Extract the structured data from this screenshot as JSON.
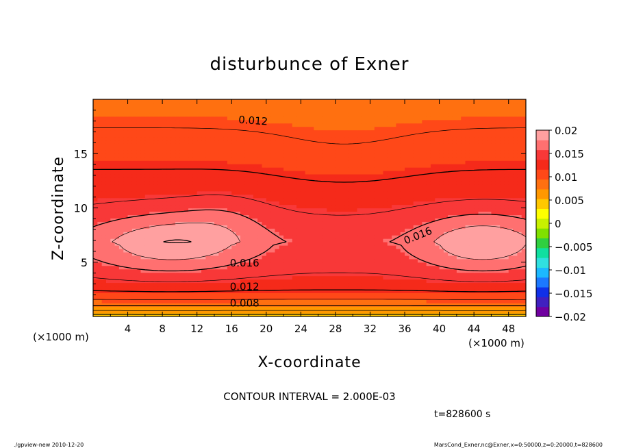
{
  "chart_data": {
    "type": "contour",
    "title": "disturbunce of Exner",
    "xlabel": "X-coordinate",
    "ylabel": "Z-coordinate",
    "x_unit_left": "(×1000 m)",
    "x_unit_right": "(×1000 m)",
    "xlim": [
      0,
      50
    ],
    "ylim": [
      0,
      20
    ],
    "x_ticks": [
      4,
      8,
      12,
      16,
      20,
      24,
      28,
      32,
      36,
      40,
      44,
      48
    ],
    "x_tick_labels": [
      "4",
      "8",
      "12",
      "16",
      "20",
      "24",
      "28",
      "32",
      "36",
      "40",
      "44",
      "48"
    ],
    "y_ticks": [
      5,
      10,
      15
    ],
    "y_tick_labels": [
      "5",
      "10",
      "15"
    ],
    "contour_interval_text": "CONTOUR INTERVAL = 2.000E-03",
    "contour_interval": 0.002,
    "contour_labels": [
      {
        "text": "0.012",
        "x": 18.5,
        "z": 18.1
      },
      {
        "text": "0.016",
        "x": 17.5,
        "z": 5.0
      },
      {
        "text": "0.012",
        "x": 17.5,
        "z": 2.8
      },
      {
        "text": "0.008",
        "x": 17.5,
        "z": 1.3
      },
      {
        "text": "0.016",
        "x": 37.5,
        "z": 7.5
      }
    ],
    "time_text": "t=828600 s",
    "colorbar": {
      "range": [
        -0.02,
        0.02
      ],
      "tick_labels": [
        "0.02",
        "0.015",
        "0.01",
        "0.005",
        "0",
        "−0.005",
        "−0.01",
        "−0.015",
        "−0.02"
      ],
      "tick_values": [
        0.02,
        0.015,
        0.01,
        0.005,
        0,
        -0.005,
        -0.01,
        -0.015,
        -0.02
      ],
      "colors": [
        "#7000a0",
        "#4020c0",
        "#1030e8",
        "#1c78ff",
        "#1cb8ff",
        "#30e0e0",
        "#10e0a0",
        "#30d040",
        "#80e000",
        "#c8f000",
        "#ffff00",
        "#ffc800",
        "#ff9800",
        "#ff7010",
        "#ff4818",
        "#f52a1a",
        "#f83838",
        "#ff7070",
        "#ffa0a0"
      ]
    }
  },
  "footer": {
    "left": "./gpview-new   2010-12-20",
    "right": "MarsCond_Exner.nc@Exner,x=0:50000,z=0:20000,t=828600"
  }
}
